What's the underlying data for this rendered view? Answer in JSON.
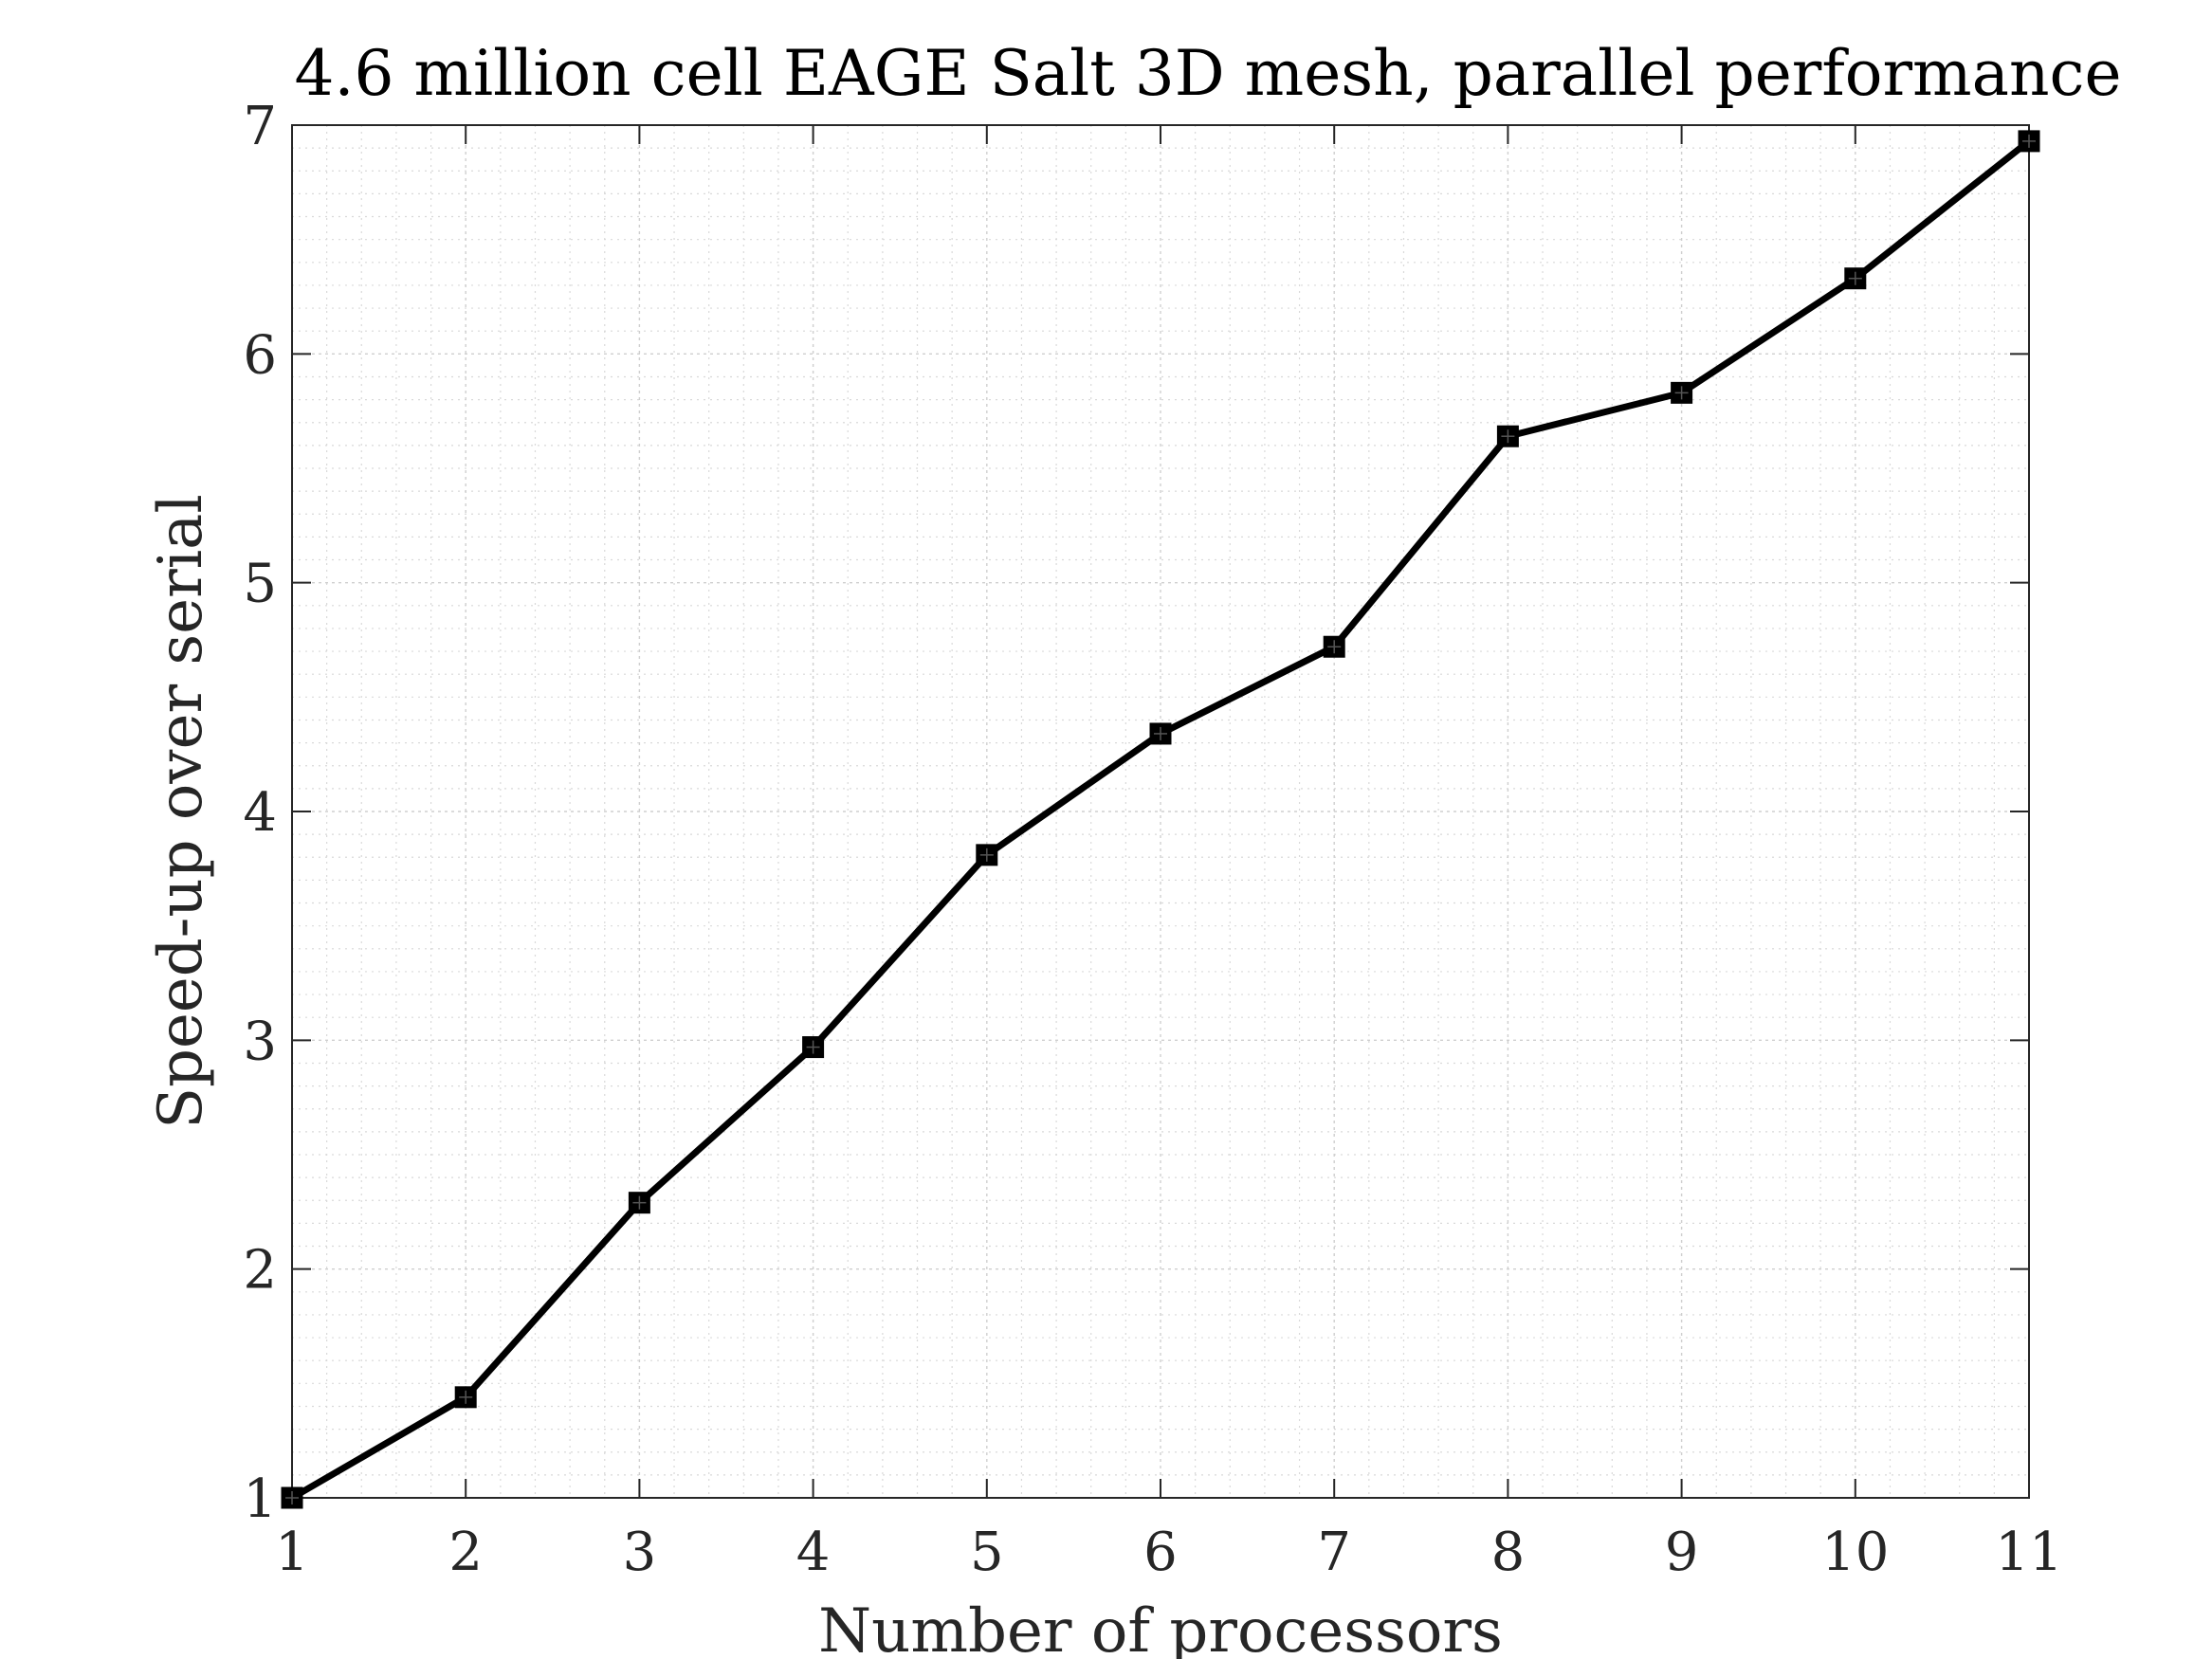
{
  "chart_data": {
    "type": "line",
    "title": "4.6 million cell EAGE Salt 3D mesh, parallel performance",
    "xlabel": "Number of processors",
    "ylabel": "Speed-up over serial",
    "xlim": [
      1,
      11
    ],
    "ylim": [
      1,
      7
    ],
    "xticks": [
      1,
      2,
      3,
      4,
      5,
      6,
      7,
      8,
      9,
      10,
      11
    ],
    "yticks": [
      1,
      2,
      3,
      4,
      5,
      6,
      7
    ],
    "grid": true,
    "minor_grid": true,
    "legend": "none",
    "line_color": "#000000",
    "series": [
      {
        "x": [
          1,
          2,
          3,
          4,
          5,
          6,
          7,
          8,
          9,
          10,
          11
        ],
        "values": [
          1.0,
          1.44,
          2.29,
          2.97,
          3.81,
          4.34,
          4.72,
          5.64,
          5.83,
          6.33,
          6.93
        ]
      }
    ]
  }
}
